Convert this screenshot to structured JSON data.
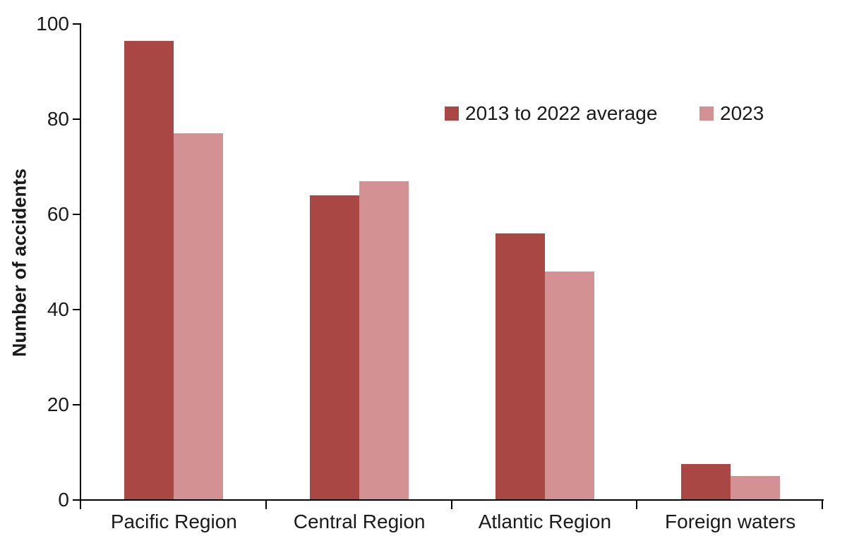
{
  "chart_data": {
    "type": "bar",
    "title": "",
    "xlabel": "",
    "ylabel": "Number of accidents",
    "categories": [
      "Pacific Region",
      "Central Region",
      "Atlantic Region",
      "Foreign waters"
    ],
    "series": [
      {
        "name": "2013 to 2022 average",
        "color": "#A84743",
        "values": [
          96.5,
          64,
          56,
          7.5
        ]
      },
      {
        "name": "2023",
        "color": "#D39193",
        "values": [
          77,
          67,
          48,
          5
        ]
      }
    ],
    "ylim": [
      0,
      100
    ],
    "ytick_step": 20,
    "grid": false,
    "legend_position": "top-right-inside",
    "colors": {
      "axis": "#000000",
      "text": "#1a1a1a",
      "background": "#ffffff"
    }
  }
}
